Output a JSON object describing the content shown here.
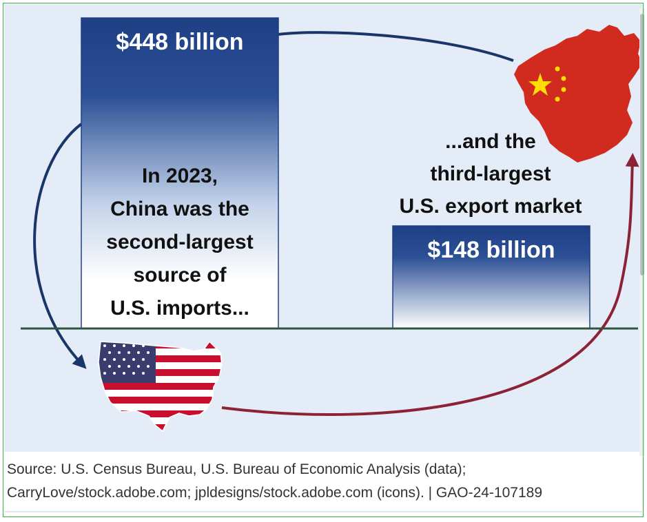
{
  "chart_data": {
    "type": "bar",
    "categories": [
      "U.S. imports from China",
      "U.S. exports to China"
    ],
    "values": [
      448,
      148
    ],
    "value_labels": [
      "$448 billion",
      "$148 billion"
    ],
    "units": "billion US dollars",
    "year": 2023
  },
  "annotations": {
    "imports_message": [
      "In 2023,",
      "China was the",
      "second-largest",
      "source of",
      "U.S. imports..."
    ],
    "exports_message": [
      "...and the",
      "third-largest",
      "U.S. export market"
    ]
  },
  "icons": {
    "china": "china-map-flag-icon",
    "usa": "usa-map-flag-icon",
    "import_arrow": "arrow-china-to-us",
    "export_arrow": "arrow-us-to-china"
  },
  "colors": {
    "bar_top": "#1f3f85",
    "bar_bottom": "#ffffff",
    "import_arrow": "#1a3568",
    "export_arrow": "#8b2335",
    "baseline": "#2e5540",
    "china_red": "#d12a1f",
    "star_yellow": "#ffde00",
    "usa_red": "#c8102e",
    "usa_blue": "#3b3b6d"
  },
  "source": {
    "line1": "Source: U.S. Census Bureau, U.S. Bureau of Economic Analysis (data);",
    "line2": "CarryLove/stock.adobe.com; jpldesigns/stock.adobe.com (icons).  |  GAO-24-107189"
  }
}
